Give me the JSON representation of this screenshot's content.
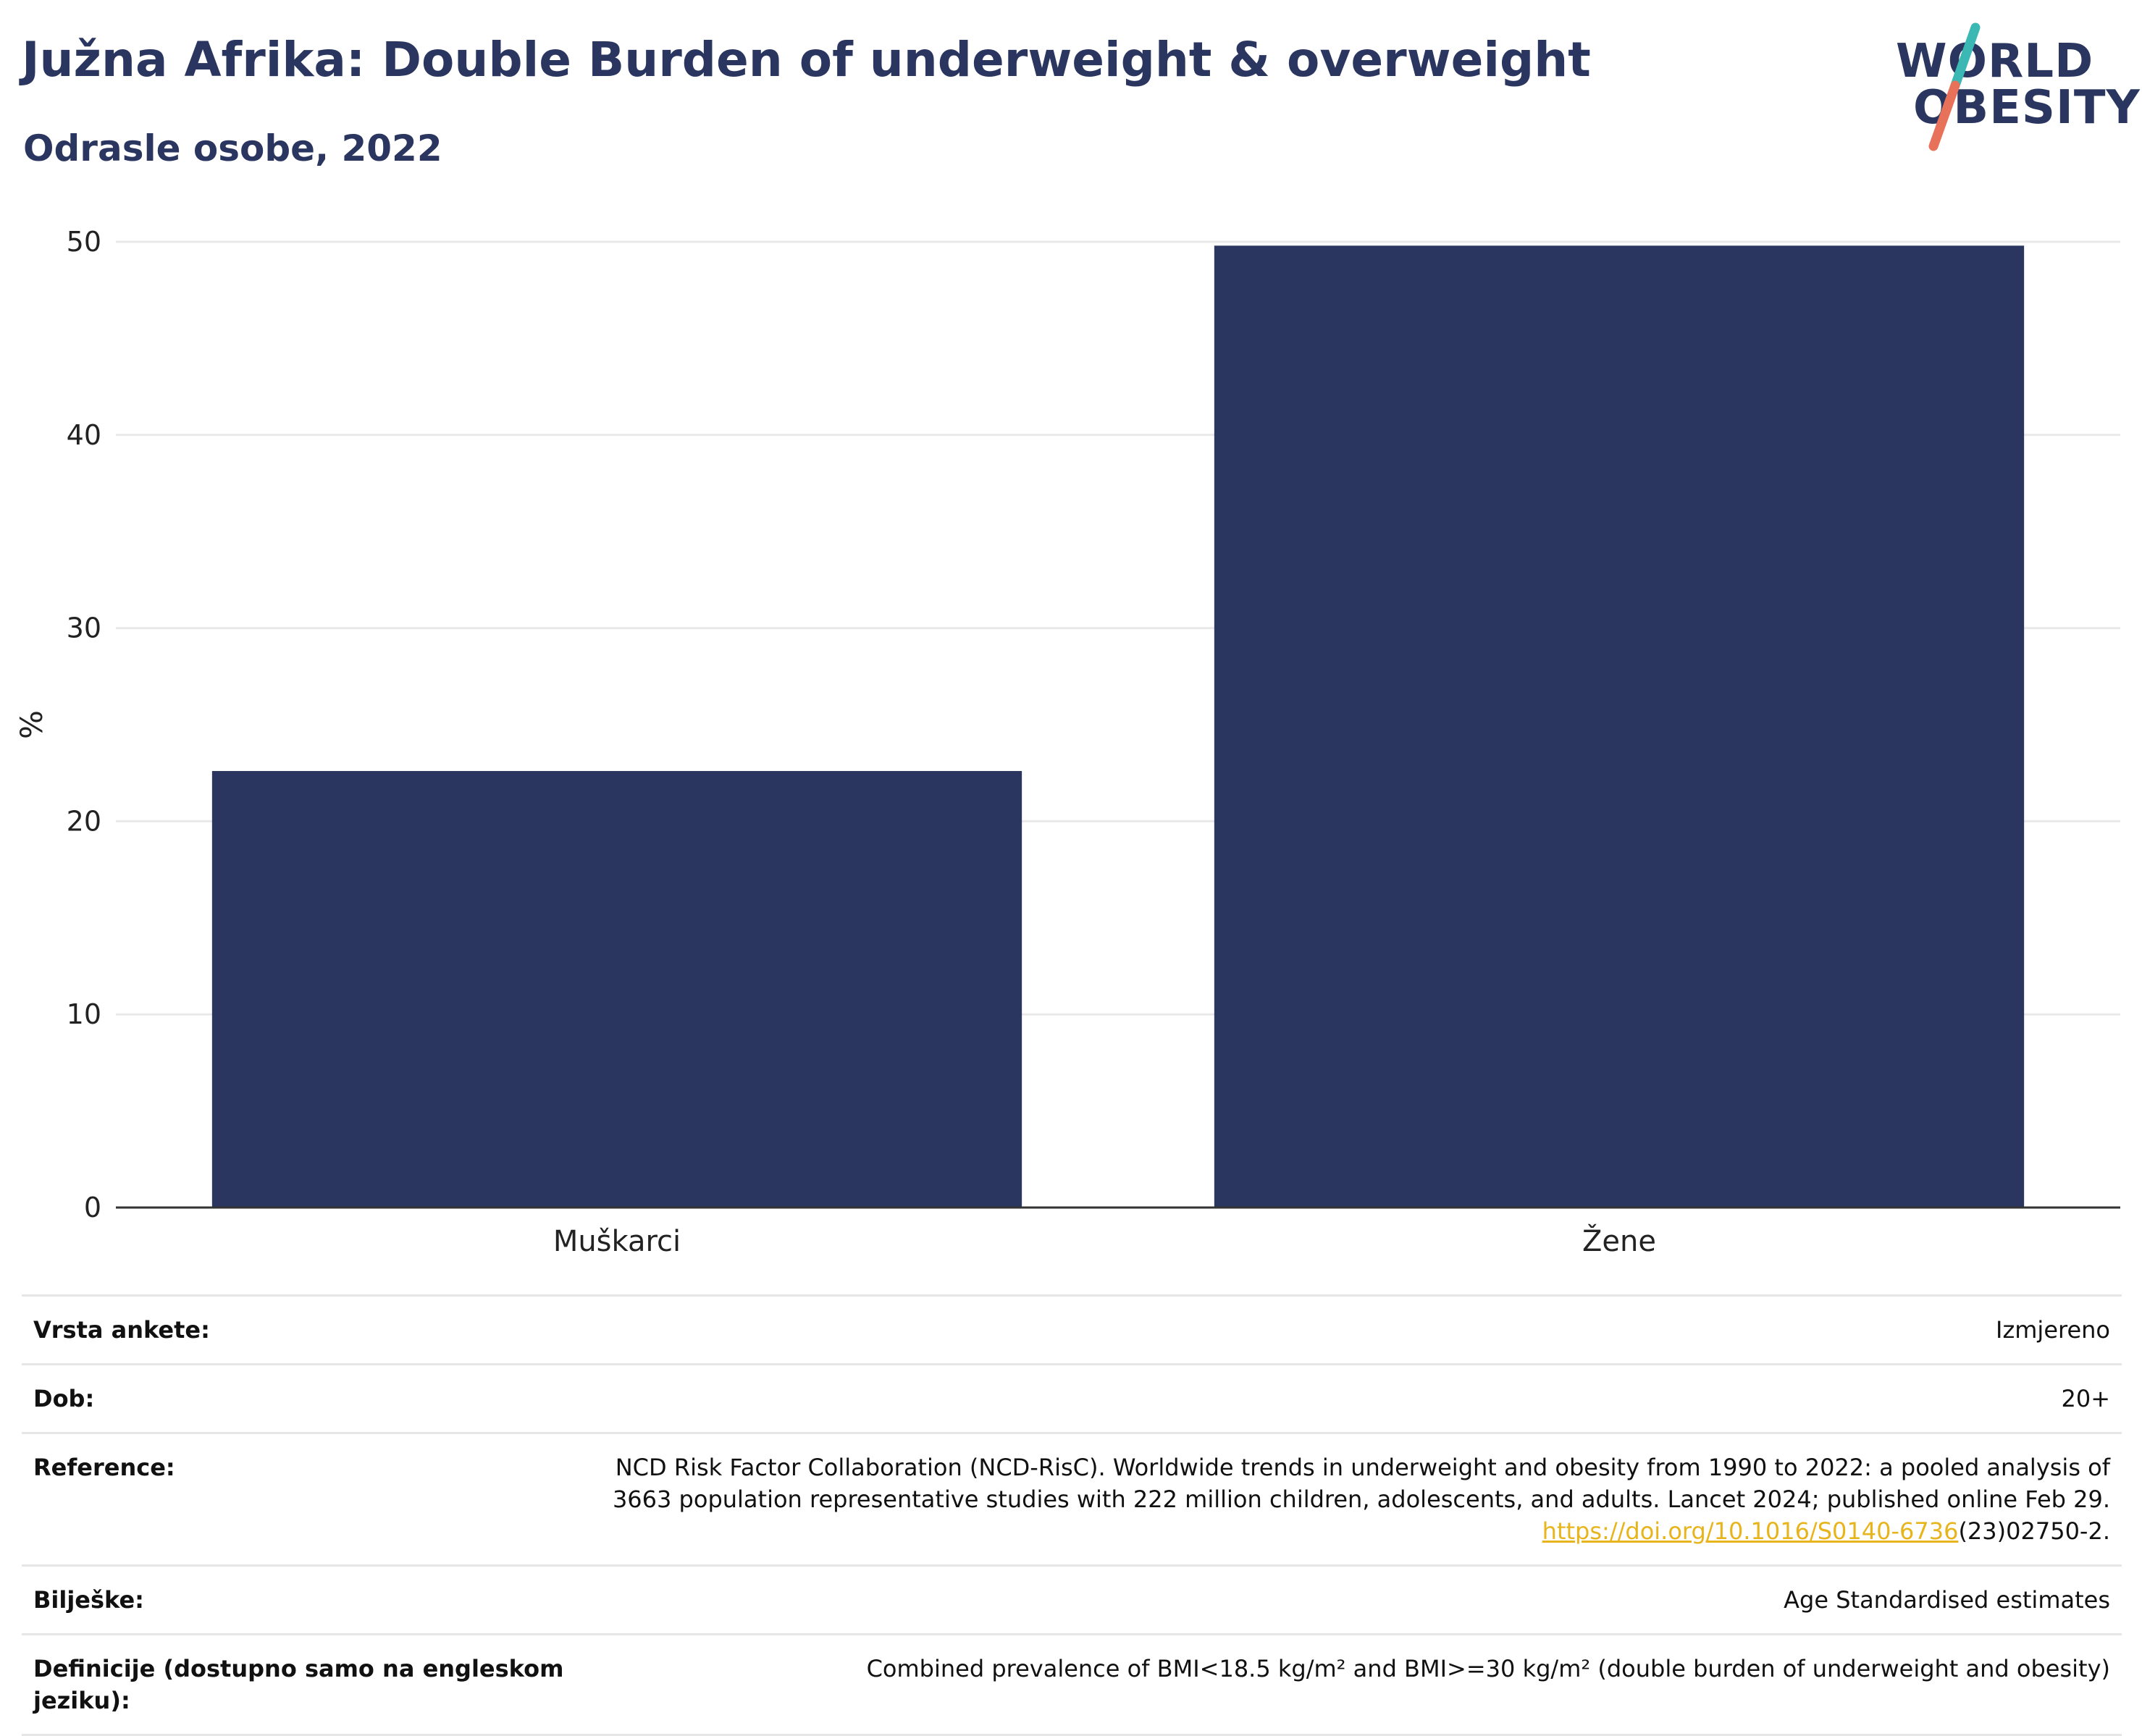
{
  "header": {
    "title": "Južna Afrika: Double Burden of underweight & overweight",
    "subtitle": "Odrasle osobe, 2022"
  },
  "logo": {
    "line1": "WORLD",
    "line2": "OBESITY",
    "slash_colors": [
      "#3bb8b3",
      "#e8715a"
    ]
  },
  "colors": {
    "bar": "#2a3660",
    "grid": "#e9e9e9",
    "axis": "#333333"
  },
  "chart_data": {
    "type": "bar",
    "categories": [
      "Muškarci",
      "Žene"
    ],
    "values": [
      22.6,
      49.8
    ],
    "ylabel": "%",
    "ylim": [
      0,
      50
    ],
    "yticks": [
      0,
      10,
      20,
      30,
      40,
      50
    ],
    "grid": true,
    "legend": "none"
  },
  "info": [
    {
      "label": "Vrsta ankete:",
      "value": "Izmjereno"
    },
    {
      "label": "Dob:",
      "value": "20+"
    },
    {
      "label": "Reference:",
      "value": "NCD Risk Factor Collaboration (NCD-RisC). Worldwide trends in underweight and obesity from 1990 to 2022: a pooled analysis of 3663 population representative studies with 222 million children, adolescents, and adults. Lancet 2024; published online Feb 29.",
      "link": "https://doi.org/10.1016/S0140-6736",
      "link_suffix": "(23)02750-2."
    },
    {
      "label": "Bilješke:",
      "value": "Age Standardised estimates"
    },
    {
      "label": "Definicije (dostupno samo na engleskom jeziku):",
      "value": "Combined prevalence of BMI<18.5 kg/m² and BMI>=30 kg/m² (double burden of underweight and obesity)"
    }
  ]
}
